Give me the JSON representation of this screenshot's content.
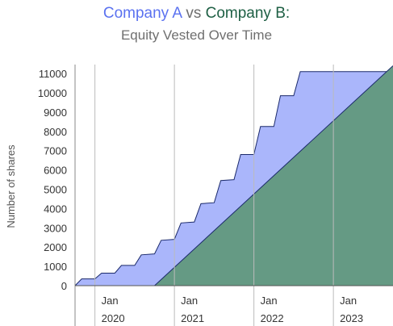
{
  "title": {
    "company_a": "Company A",
    "vs": "vs",
    "company_b": "Company B:",
    "subtitle": "Equity Vested Over Time"
  },
  "colors": {
    "company_a_fill": "#aab6fb",
    "company_a_title": "#5b72f0",
    "company_b_fill": "#659a84",
    "company_b_title": "#1f6045",
    "grid": "#bbbbbb",
    "outline": "#1b2a6b"
  },
  "chart_data": {
    "type": "area",
    "ylabel": "Number of shares",
    "ylim": [
      0,
      11000
    ],
    "yticks": [
      0,
      1000,
      2000,
      3000,
      4000,
      5000,
      6000,
      7000,
      8000,
      9000,
      10000,
      11000
    ],
    "xlim": [
      "2019-10",
      "2023-10"
    ],
    "x_ticks": [
      {
        "month": "Jan",
        "year": "2020"
      },
      {
        "month": "Jan",
        "year": "2021"
      },
      {
        "month": "Jan",
        "year": "2022"
      },
      {
        "month": "Jan",
        "year": "2023"
      }
    ],
    "grid": "vertical lines at each January",
    "series": [
      {
        "name": "Company A",
        "x": [
          "2019-10",
          "2019-11",
          "2020-01",
          "2020-02",
          "2020-04",
          "2020-05",
          "2020-07",
          "2020-08",
          "2020-10",
          "2020-11",
          "2021-01",
          "2021-02",
          "2021-04",
          "2021-05",
          "2021-07",
          "2021-08",
          "2021-10",
          "2021-11",
          "2022-01",
          "2022-02",
          "2022-04",
          "2022-05",
          "2022-07",
          "2022-08",
          "2022-10",
          "2022-11",
          "2023-01",
          "2023-10"
        ],
        "values": [
          0,
          350,
          350,
          650,
          650,
          1050,
          1050,
          1600,
          1650,
          2350,
          2400,
          3250,
          3300,
          4250,
          4300,
          5450,
          5500,
          6800,
          6800,
          8250,
          8250,
          9850,
          9850,
          11100,
          11100,
          11100,
          11100,
          11100
        ]
      },
      {
        "name": "Company B",
        "x": [
          "2019-10",
          "2020-10",
          "2023-10"
        ],
        "values": [
          0,
          0,
          11400
        ]
      }
    ]
  }
}
